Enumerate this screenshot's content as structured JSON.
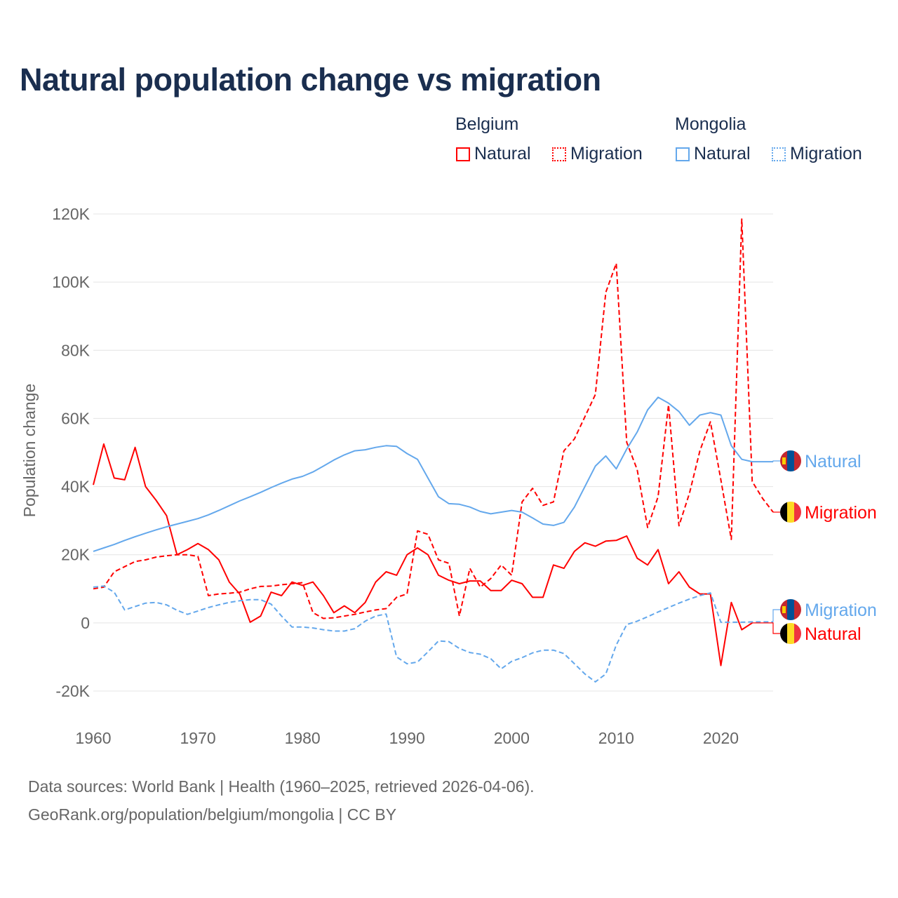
{
  "title": "Natural population change vs migration",
  "legend": {
    "groups": [
      {
        "name": "Belgium",
        "items": [
          "Natural",
          "Migration"
        ],
        "color": "#ff0000"
      },
      {
        "name": "Mongolia",
        "items": [
          "Natural",
          "Migration"
        ],
        "color": "#64a8ec"
      }
    ]
  },
  "footer": {
    "line1": "Data sources: World Bank | Health (1960–2025, retrieved 2026-04-06).",
    "line2": "GeoRank.org/population/belgium/mongolia | CC BY"
  },
  "chart_data": {
    "type": "line",
    "title": "Natural population change vs migration",
    "xlabel": "",
    "ylabel": "Population change",
    "xlim": [
      1960,
      2025
    ],
    "ylim": [
      -20000,
      120000
    ],
    "x_ticks": [
      1960,
      1970,
      1980,
      1990,
      2000,
      2010,
      2020
    ],
    "y_ticks": [
      -20000,
      0,
      20000,
      40000,
      60000,
      80000,
      100000,
      120000
    ],
    "y_tick_labels": [
      "-20K",
      "0",
      "20K",
      "40K",
      "60K",
      "80K",
      "100K",
      "120K"
    ],
    "grid": true,
    "legend_position": "top-right",
    "x_start": 1960,
    "series": [
      {
        "name": "Belgium Natural",
        "label": "Natural",
        "country": "Belgium",
        "color": "#ff0000",
        "dash": false,
        "values": [
          40.5,
          52.5,
          42.5,
          42,
          51.5,
          40,
          36,
          31.5,
          20,
          21.5,
          23.3,
          21.5,
          18.5,
          12,
          8.5,
          0.2,
          2,
          9,
          8,
          12,
          11,
          12,
          8,
          3,
          5,
          3,
          6,
          12,
          15,
          14,
          20,
          22,
          20,
          14,
          12.5,
          11.5,
          12.3,
          12.3,
          9.5,
          9.5,
          12.5,
          11.5,
          7.5,
          7.5,
          17,
          16,
          21,
          23.5,
          22.5,
          24,
          24.2,
          25.5,
          19,
          17,
          21.5,
          11.5,
          15,
          10.5,
          8.5,
          8.5,
          -12.5,
          6,
          -2,
          0
        ]
      },
      {
        "name": "Belgium Migration",
        "label": "Migration",
        "country": "Belgium",
        "color": "#ff0000",
        "dash": true,
        "values": [
          10,
          10.5,
          15,
          16.5,
          18,
          18.5,
          19.3,
          19.7,
          20,
          20,
          19.5,
          8,
          8.5,
          8.7,
          9,
          10,
          10.7,
          10.8,
          11.2,
          11.5,
          11.8,
          3,
          1.3,
          1.5,
          2,
          2.5,
          3.2,
          3.8,
          4.2,
          7.5,
          8.5,
          27,
          26,
          18.5,
          17.5,
          2,
          16,
          10.5,
          13,
          17,
          14,
          35.5,
          39.5,
          34.5,
          35.5,
          50.5,
          54,
          60.5,
          67,
          97,
          105.5,
          53,
          45,
          28,
          37,
          64,
          28.5,
          38,
          50.5,
          59,
          42,
          24.5,
          118.5,
          41.5,
          36.5,
          32.5
        ]
      },
      {
        "name": "Mongolia Natural",
        "label": "Natural",
        "country": "Mongolia",
        "color": "#64a8ec",
        "dash": false,
        "values": [
          21,
          22,
          23,
          24.2,
          25.3,
          26.3,
          27.3,
          28.2,
          29,
          29.8,
          30.6,
          31.7,
          33,
          34.4,
          35.8,
          37,
          38.3,
          39.7,
          41,
          42.2,
          43,
          44.3,
          46,
          47.8,
          49.3,
          50.5,
          50.8,
          51.5,
          52,
          51.8,
          49.7,
          48,
          42.5,
          37,
          35,
          34.8,
          34,
          32.7,
          32,
          32.5,
          33,
          32.5,
          30.8,
          29,
          28.6,
          29.5,
          34,
          40,
          46,
          49,
          45.2,
          51,
          56,
          62.5,
          66.2,
          64.5,
          62,
          58,
          61,
          61.7,
          61,
          52,
          48,
          47.3,
          47.3,
          47.3
        ]
      },
      {
        "name": "Mongolia Migration",
        "label": "Migration",
        "country": "Mongolia",
        "color": "#64a8ec",
        "dash": true,
        "values": [
          10.5,
          10.8,
          9,
          3.8,
          4.8,
          5.8,
          6,
          5.3,
          3.7,
          2.5,
          3.5,
          4.5,
          5.3,
          6,
          6.5,
          6.8,
          6.8,
          5.5,
          2,
          -1.2,
          -1.2,
          -1.5,
          -2,
          -2.4,
          -2.4,
          -1.7,
          0.5,
          2,
          2.6,
          -10,
          -12,
          -11.5,
          -8.5,
          -5.3,
          -5.5,
          -7.5,
          -8.7,
          -9.2,
          -10.5,
          -13.5,
          -11.3,
          -10.2,
          -8.8,
          -8,
          -8,
          -9,
          -12,
          -15,
          -17.3,
          -15,
          -6.5,
          -0.5,
          0.5,
          1.8,
          3.2,
          4.5,
          5.8,
          7,
          8,
          8.8,
          0.2,
          0.2,
          0.2,
          0.3,
          0.3,
          0.3
        ]
      }
    ],
    "value_unit": "thousands"
  }
}
